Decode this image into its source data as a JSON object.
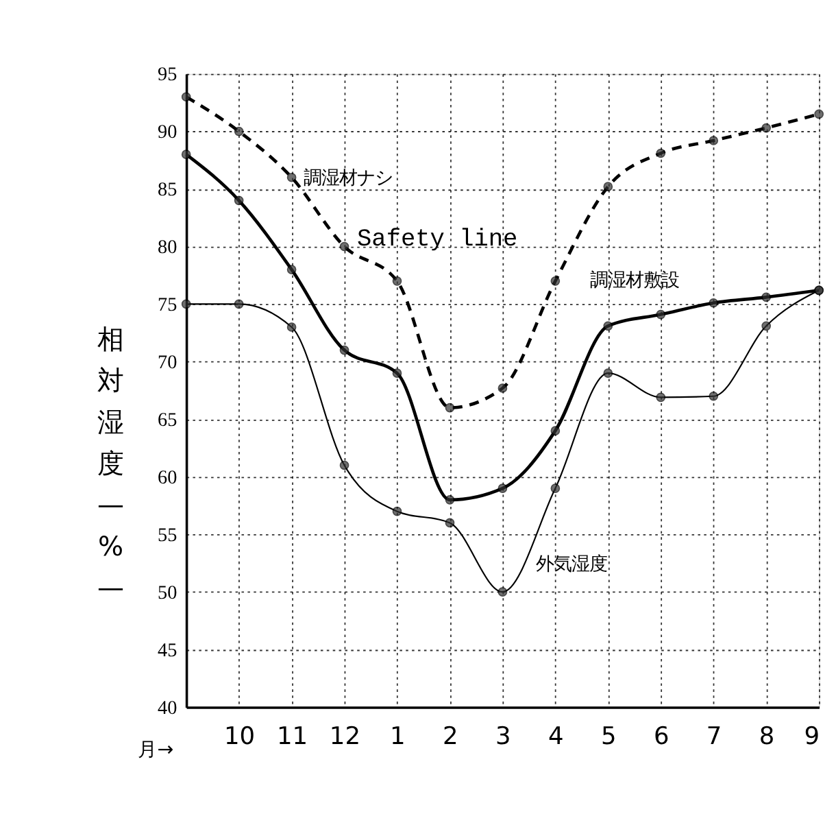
{
  "chart_data": {
    "type": "line",
    "xlabel": "月→",
    "ylabel": "相対湿度—%—",
    "categories": [
      null,
      "10",
      "11",
      "12",
      "1",
      "2",
      "3",
      "4",
      "5",
      "6",
      "7",
      "8",
      "9"
    ],
    "series": [
      {
        "name": "調湿材ナシ",
        "color": "#000000",
        "line_style": "dashed",
        "values": [
          93,
          90,
          86,
          80,
          77,
          66,
          67.7,
          77,
          85.2,
          88.1,
          89.2,
          90.3,
          91.5
        ]
      },
      {
        "name": "調湿材敷設",
        "color": "#000000",
        "line_style": "solid",
        "values": [
          88,
          84,
          78,
          71,
          69,
          58,
          59,
          64,
          73.1,
          74.1,
          75.1,
          75.6,
          76.2
        ]
      },
      {
        "name": "外気湿度",
        "color": "#000000",
        "line_style": "solid",
        "values": [
          75,
          75,
          73,
          61,
          57,
          56,
          50,
          59,
          69,
          66.9,
          67,
          73.1,
          76.2
        ]
      }
    ],
    "ylim": [
      40,
      95
    ],
    "yticks": [
      40,
      45,
      50,
      55,
      60,
      65,
      70,
      75,
      80,
      85,
      90,
      95
    ],
    "grid": true,
    "marker": "circle",
    "annotations": [
      "Safety line"
    ]
  }
}
